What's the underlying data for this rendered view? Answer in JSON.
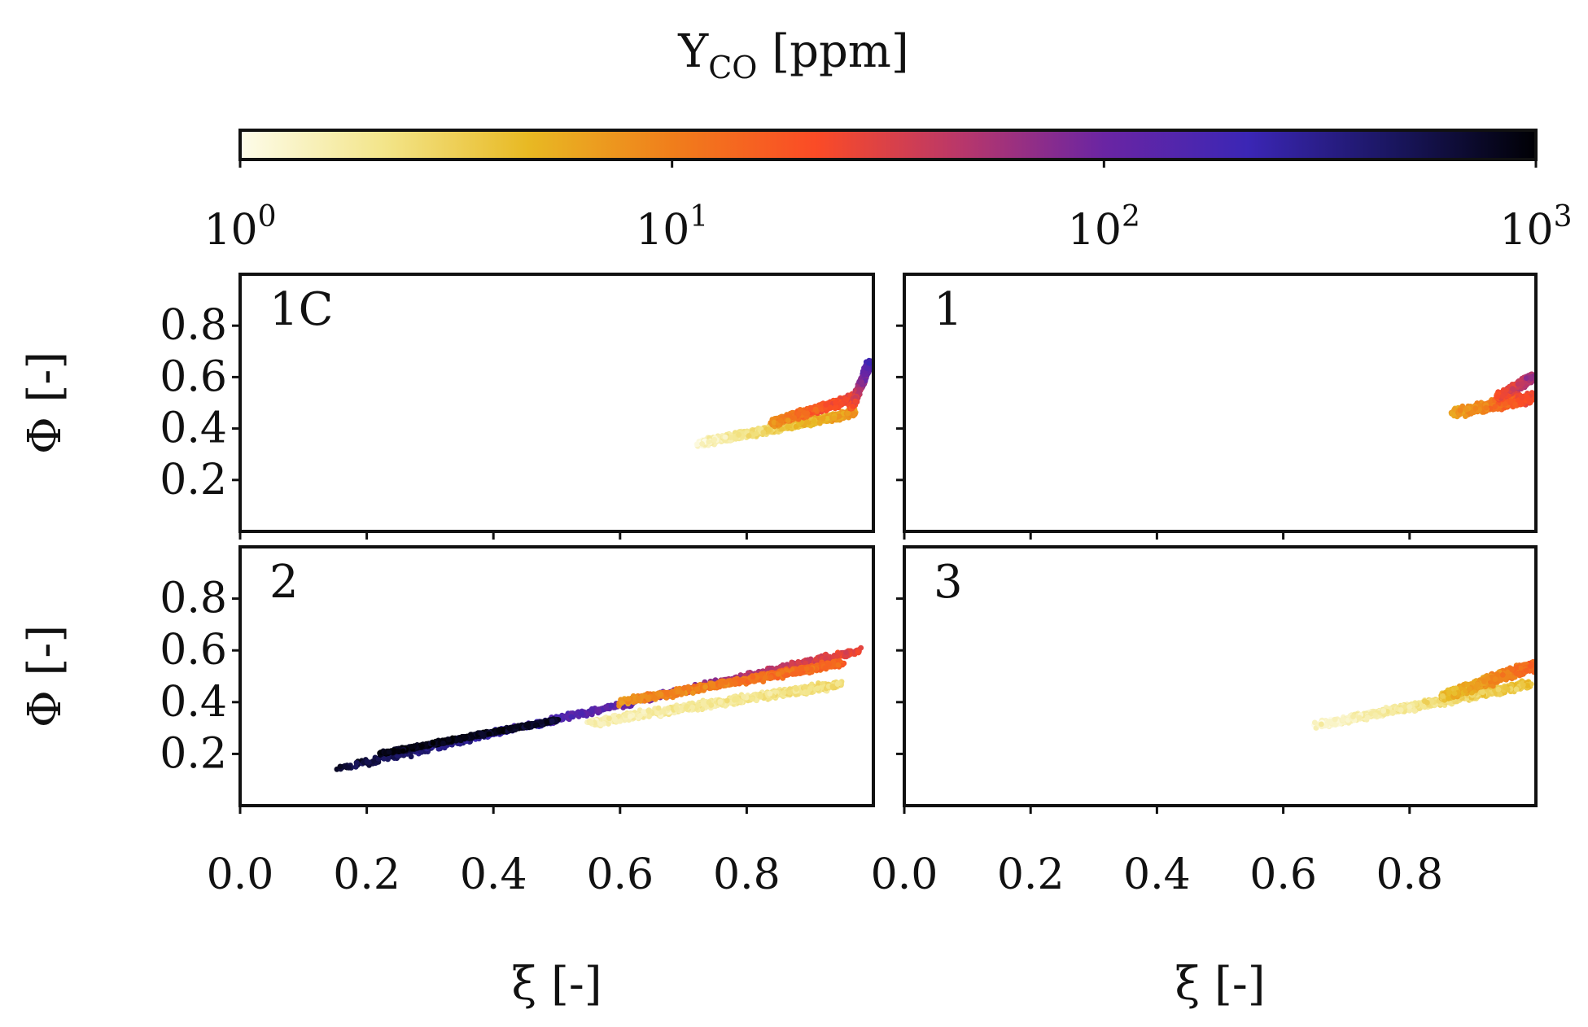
{
  "colorbar": {
    "title_main": "Y",
    "title_sub": "CO",
    "title_unit": " [ppm]",
    "scale": "log",
    "range": [
      1,
      1000
    ],
    "ticks": [
      {
        "base": "10",
        "exp": "0",
        "value": 1
      },
      {
        "base": "10",
        "exp": "1",
        "value": 10
      },
      {
        "base": "10",
        "exp": "2",
        "value": 100
      },
      {
        "base": "10",
        "exp": "3",
        "value": 1000
      }
    ],
    "colormap": [
      "#fdfcea",
      "#f3e58a",
      "#e8b923",
      "#f07e1b",
      "#fb4b26",
      "#b9376a",
      "#6a25a3",
      "#3b26b5",
      "#1a1660",
      "#000004"
    ]
  },
  "chart_data": {
    "type": "scatter",
    "xlabel_main": "ξ",
    "xlabel_unit": "[-]",
    "ylabel_main": "Φ",
    "ylabel_unit": "[-]",
    "xlim": [
      0.0,
      1.0
    ],
    "ylim": [
      0.0,
      1.0
    ],
    "xticks": [
      "0.0",
      "0.2",
      "0.4",
      "0.6",
      "0.8"
    ],
    "xtick_values": [
      0.0,
      0.2,
      0.4,
      0.6,
      0.8
    ],
    "yticks": [
      "0.2",
      "0.4",
      "0.6",
      "0.8"
    ],
    "ytick_values": [
      0.2,
      0.4,
      0.6,
      0.8
    ],
    "panels": [
      {
        "label": "1C",
        "clusters": [
          {
            "x_start": 0.72,
            "x_end": 0.97,
            "phi_start": 0.34,
            "phi_end": 0.46,
            "width": 0.04,
            "co_start": 1.2,
            "co_end": 8
          },
          {
            "x_start": 0.84,
            "x_end": 0.97,
            "phi_start": 0.42,
            "phi_end": 0.52,
            "width": 0.04,
            "co_start": 8,
            "co_end": 30
          },
          {
            "x_start": 0.965,
            "x_end": 0.995,
            "phi_start": 0.48,
            "phi_end": 0.66,
            "width": 0.02,
            "co_start": 20,
            "co_end": 200
          }
        ]
      },
      {
        "label": "1",
        "clusters": [
          {
            "x_start": 0.87,
            "x_end": 0.995,
            "phi_start": 0.46,
            "phi_end": 0.52,
            "width": 0.05,
            "co_start": 6,
            "co_end": 25
          },
          {
            "x_start": 0.94,
            "x_end": 0.995,
            "phi_start": 0.52,
            "phi_end": 0.6,
            "width": 0.04,
            "co_start": 20,
            "co_end": 60
          }
        ]
      },
      {
        "label": "2",
        "clusters": [
          {
            "x_start": 0.15,
            "x_end": 0.98,
            "phi_start": 0.14,
            "phi_end": 0.6,
            "width": 0.035,
            "co_start": 700,
            "co_end": 25
          },
          {
            "x_start": 0.22,
            "x_end": 0.5,
            "phi_start": 0.2,
            "phi_end": 0.33,
            "width": 0.018,
            "co_start": 900,
            "co_end": 800
          },
          {
            "x_start": 0.55,
            "x_end": 0.95,
            "phi_start": 0.32,
            "phi_end": 0.47,
            "width": 0.04,
            "co_start": 1.5,
            "co_end": 2.5
          },
          {
            "x_start": 0.6,
            "x_end": 0.95,
            "phi_start": 0.4,
            "phi_end": 0.55,
            "width": 0.035,
            "co_start": 8,
            "co_end": 15
          }
        ]
      },
      {
        "label": "3",
        "clusters": [
          {
            "x_start": 0.65,
            "x_end": 0.99,
            "phi_start": 0.31,
            "phi_end": 0.47,
            "width": 0.04,
            "co_start": 1.2,
            "co_end": 4
          },
          {
            "x_start": 0.85,
            "x_end": 0.995,
            "phi_start": 0.42,
            "phi_end": 0.54,
            "width": 0.05,
            "co_start": 4,
            "co_end": 15
          }
        ]
      }
    ]
  }
}
